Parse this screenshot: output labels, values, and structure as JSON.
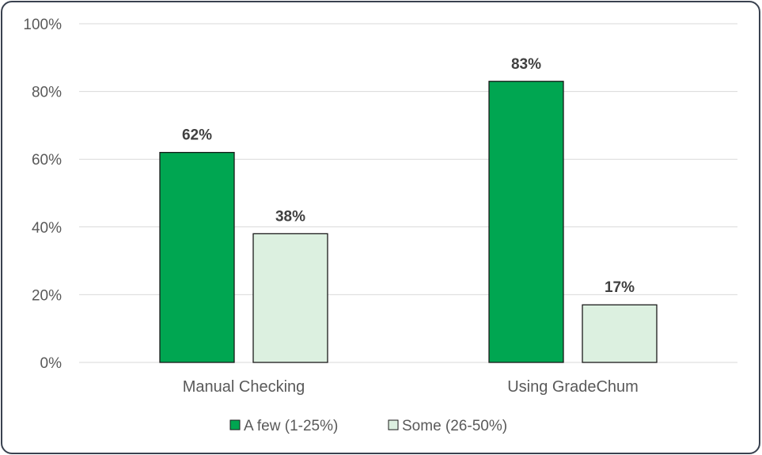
{
  "chart_data": {
    "type": "bar",
    "categories": [
      "Manual Checking",
      "Using GradeChum"
    ],
    "series": [
      {
        "name": "A few (1-25%)",
        "values": [
          62,
          83
        ],
        "labels": [
          "62%",
          "83%"
        ],
        "color": "#00a651"
      },
      {
        "name": "Some (26-50%)",
        "values": [
          38,
          17
        ],
        "labels": [
          "38%",
          "17%"
        ],
        "color": "#dcf0e0"
      }
    ],
    "ylim": [
      0,
      100
    ],
    "yticks": [
      0,
      20,
      40,
      60,
      80,
      100
    ],
    "ytick_labels": [
      "0%",
      "20%",
      "40%",
      "60%",
      "80%",
      "100%"
    ],
    "grid": true,
    "legend": "bottom",
    "bar_outline": "#1a1a1a",
    "grid_color": "#d9d9d9"
  }
}
